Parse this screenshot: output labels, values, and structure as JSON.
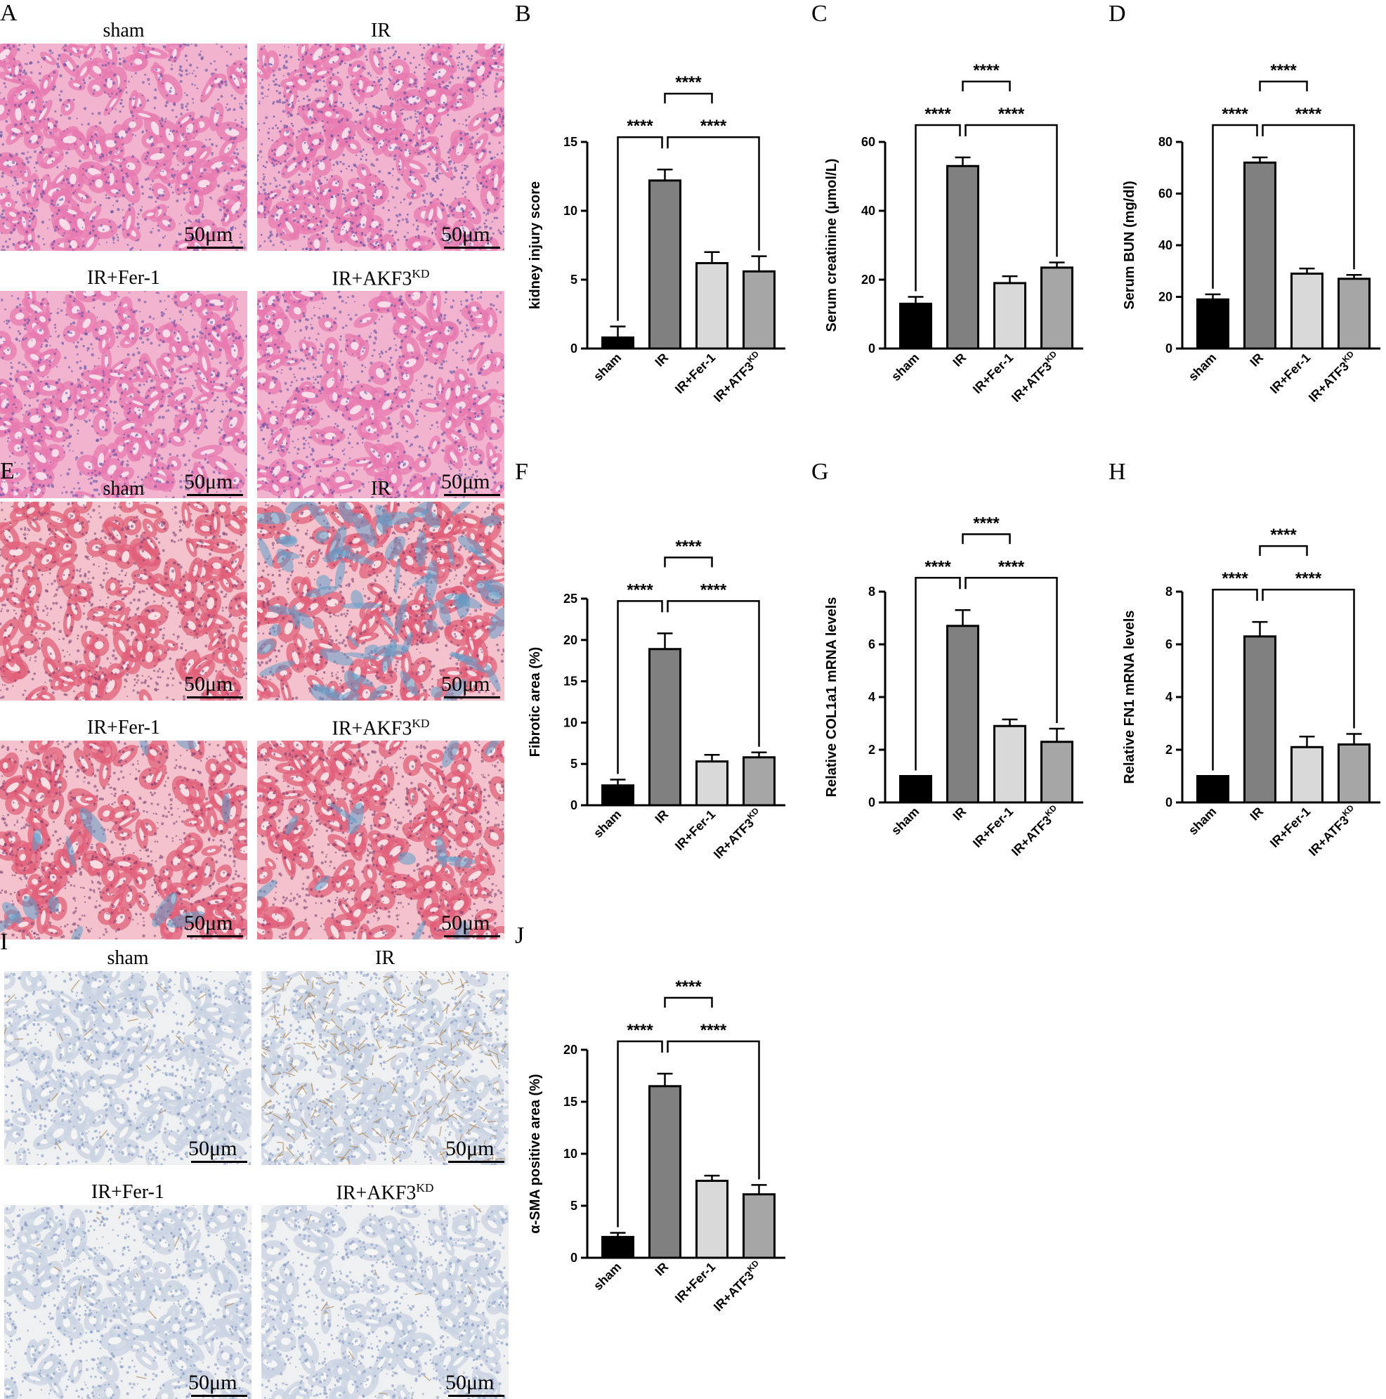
{
  "micrograph_panels": [
    {
      "letter": "A",
      "stain": "HE",
      "titles": [
        "sham",
        "IR",
        "IR+Fer-1",
        "IR+AKF3"
      ],
      "title_sup": [
        "",
        "",
        "",
        "KD"
      ],
      "scale_label": "50μm",
      "palette": {
        "bg": "#f2b3cf",
        "cell": "#e77ab0",
        "nuc": "#5a4aa0",
        "lumen": "#fbe5ee"
      }
    },
    {
      "letter": "E",
      "stain": "Masson",
      "titles": [
        "sham",
        "IR",
        "IR+Fer-1",
        "IR+AKF3"
      ],
      "title_sup": [
        "",
        "",
        "",
        "KD"
      ],
      "scale_label": "50μm",
      "palette": {
        "bg": "#f3c2cc",
        "cell": "#e0607a",
        "nuc": "#7a3a70",
        "lumen": "#fbe9ec",
        "blue": "#5f9fc8"
      }
    },
    {
      "letter": "I",
      "stain": "IHC",
      "titles": [
        "sham",
        "IR",
        "IR+Fer-1",
        "IR+AKF3"
      ],
      "title_sup": [
        "",
        "",
        "",
        "KD"
      ],
      "scale_label": "50μm",
      "palette": {
        "bg": "#eef0f2",
        "cell": "#c9d3e2",
        "nuc": "#7f93bf",
        "lumen": "#f7f7f5",
        "brown": "#b08a5a"
      }
    }
  ],
  "chart_data": [
    {
      "letter": "B",
      "type": "bar",
      "categories": [
        "sham",
        "IR",
        "IR+Fer-1",
        "IR+ATF3"
      ],
      "category_sup": [
        "",
        "",
        "",
        "KD"
      ],
      "values": [
        0.8,
        12.2,
        6.2,
        5.6
      ],
      "errors": [
        0.8,
        0.8,
        0.8,
        1.1
      ],
      "ylabel": "kidney injury score",
      "ylim": [
        0,
        15
      ],
      "yticks": [
        0,
        5,
        10,
        15
      ],
      "significance": [
        {
          "from": 0,
          "to": 1,
          "label": "****"
        },
        {
          "from": 1,
          "to": 2,
          "label": "****"
        },
        {
          "from": 1,
          "to": 3,
          "label": "****"
        }
      ]
    },
    {
      "letter": "C",
      "type": "bar",
      "categories": [
        "sham",
        "IR",
        "IR+Fer-1",
        "IR+ATF3"
      ],
      "category_sup": [
        "",
        "",
        "",
        "KD"
      ],
      "values": [
        13,
        53,
        19,
        23.5
      ],
      "errors": [
        2,
        2.5,
        2,
        1.5
      ],
      "ylabel": "Serum creatinine (μmol/L)",
      "ylim": [
        0,
        60
      ],
      "yticks": [
        0,
        20,
        40,
        60
      ],
      "significance": [
        {
          "from": 0,
          "to": 1,
          "label": "****"
        },
        {
          "from": 1,
          "to": 2,
          "label": "****"
        },
        {
          "from": 1,
          "to": 3,
          "label": "****"
        }
      ]
    },
    {
      "letter": "D",
      "type": "bar",
      "categories": [
        "sham",
        "IR",
        "IR+Fer-1",
        "IR+ATF3"
      ],
      "category_sup": [
        "",
        "",
        "",
        "KD"
      ],
      "values": [
        19,
        72,
        29,
        27
      ],
      "errors": [
        2,
        2,
        2,
        1.5
      ],
      "ylabel": "Serum BUN (mg/dl)",
      "ylim": [
        0,
        80
      ],
      "yticks": [
        0,
        20,
        40,
        60,
        80
      ],
      "significance": [
        {
          "from": 0,
          "to": 1,
          "label": "****"
        },
        {
          "from": 1,
          "to": 2,
          "label": "****"
        },
        {
          "from": 1,
          "to": 3,
          "label": "****"
        }
      ]
    },
    {
      "letter": "F",
      "type": "bar",
      "categories": [
        "sham",
        "IR",
        "IR+Fer-1",
        "IR+ATF3"
      ],
      "category_sup": [
        "",
        "",
        "",
        "KD"
      ],
      "values": [
        2.4,
        18.9,
        5.3,
        5.8
      ],
      "errors": [
        0.7,
        1.9,
        0.8,
        0.6
      ],
      "ylabel": "Fibrotic area (%)",
      "ylim": [
        0,
        25
      ],
      "yticks": [
        0,
        5,
        10,
        15,
        20,
        25
      ],
      "significance": [
        {
          "from": 0,
          "to": 1,
          "label": "****"
        },
        {
          "from": 1,
          "to": 2,
          "label": "****"
        },
        {
          "from": 1,
          "to": 3,
          "label": "****"
        }
      ]
    },
    {
      "letter": "G",
      "type": "bar",
      "categories": [
        "sham",
        "IR",
        "IR+Fer-1",
        "IR+ATF3"
      ],
      "category_sup": [
        "",
        "",
        "",
        "KD"
      ],
      "values": [
        1,
        6.7,
        2.9,
        2.3
      ],
      "errors": [
        0,
        0.6,
        0.25,
        0.5
      ],
      "ylabel": "Relative COL1a1 mRNA levels",
      "ylim": [
        0,
        8
      ],
      "yticks": [
        0,
        2,
        4,
        6,
        8
      ],
      "significance": [
        {
          "from": 0,
          "to": 1,
          "label": "****"
        },
        {
          "from": 1,
          "to": 2,
          "label": "****"
        },
        {
          "from": 1,
          "to": 3,
          "label": "****"
        }
      ]
    },
    {
      "letter": "H",
      "type": "bar",
      "categories": [
        "sham",
        "IR",
        "IR+Fer-1",
        "IR+ATF3"
      ],
      "category_sup": [
        "",
        "",
        "",
        "KD"
      ],
      "values": [
        1,
        6.3,
        2.1,
        2.2
      ],
      "errors": [
        0,
        0.55,
        0.4,
        0.4
      ],
      "ylabel": "Relative FN1 mRNA levels",
      "ylim": [
        0,
        8
      ],
      "yticks": [
        0,
        2,
        4,
        6,
        8
      ],
      "significance": [
        {
          "from": 0,
          "to": 1,
          "label": "****"
        },
        {
          "from": 1,
          "to": 2,
          "label": "****"
        },
        {
          "from": 1,
          "to": 3,
          "label": "****"
        }
      ]
    },
    {
      "letter": "J",
      "type": "bar",
      "categories": [
        "sham",
        "IR",
        "IR+Fer-1",
        "IR+ATF3"
      ],
      "category_sup": [
        "",
        "",
        "",
        "KD"
      ],
      "values": [
        2,
        16.5,
        7.4,
        6.1
      ],
      "errors": [
        0.4,
        1.2,
        0.5,
        0.9
      ],
      "ylabel": "α-SMA positive area (%)",
      "ylim": [
        0,
        20
      ],
      "yticks": [
        0,
        5,
        10,
        15,
        20
      ],
      "significance": [
        {
          "from": 0,
          "to": 1,
          "label": "****"
        },
        {
          "from": 1,
          "to": 2,
          "label": "****"
        },
        {
          "from": 1,
          "to": 3,
          "label": "****"
        }
      ]
    }
  ],
  "bar_colors": [
    "#000000",
    "#808080",
    "#d9d9d9",
    "#a6a6a6"
  ]
}
